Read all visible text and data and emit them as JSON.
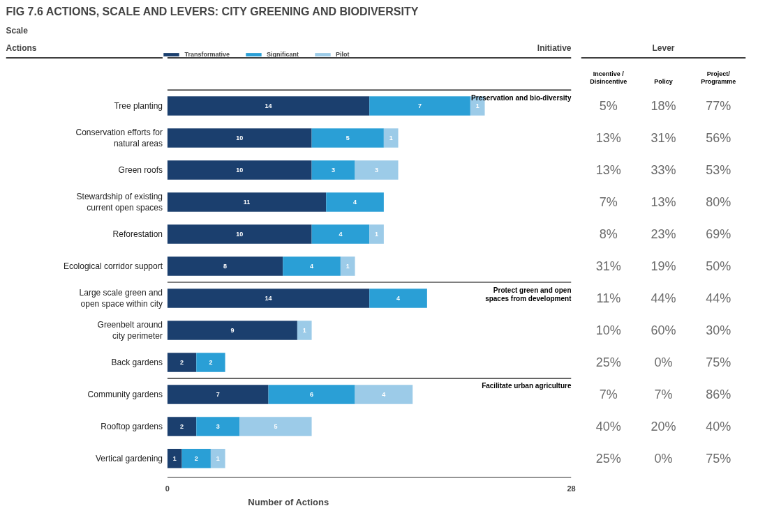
{
  "chart_data": [
    {
      "type": "bar",
      "orientation": "horizontal",
      "stacked": true,
      "title": "FIG 7.6 ACTIONS, SCALE AND LEVERS: CITY GREENING AND BIODIVERSITY",
      "subtitle": "Scale",
      "ylabel": "Actions",
      "xlabel": "Number of Actions",
      "categories": [
        "Tree planting",
        "Conservation efforts for natural areas",
        "Green roofs",
        "Stewardship of existing current open spaces",
        "Reforestation",
        "Ecological corridor support",
        "Large scale green and open space within city",
        "Greenbelt around city perimeter",
        "Back gardens",
        "Community gardens",
        "Rooftop gardens",
        "Vertical gardening"
      ],
      "series": [
        {
          "name": "Transformative",
          "color": "#1b3f6e",
          "values": [
            14,
            10,
            10,
            11,
            10,
            8,
            14,
            9,
            2,
            7,
            2,
            1
          ]
        },
        {
          "name": "Significant",
          "color": "#2a9fd6",
          "values": [
            7,
            5,
            3,
            4,
            4,
            4,
            4,
            null,
            2,
            6,
            3,
            2
          ]
        },
        {
          "name": "Pilot",
          "color": "#9ccbe8",
          "values": [
            1,
            1,
            3,
            null,
            1,
            1,
            null,
            1,
            null,
            4,
            5,
            1
          ]
        }
      ],
      "xlim": [
        0,
        28
      ],
      "xticks": [
        0,
        28
      ],
      "grid": false,
      "legend": "top left",
      "data_labels": true,
      "annotations": [
        "Initiative",
        "Preservation and bio-diversity",
        "Protect green and open spaces from development",
        "Facilitate urban agriculture"
      ]
    },
    {
      "type": "other",
      "title": "Lever",
      "categories": [
        "Incentive / Disincentive",
        "Policy",
        "Project/ Programme"
      ],
      "cell_labels": [
        [
          "5%",
          "18%",
          "77%"
        ],
        [
          "13%",
          "31%",
          "56%"
        ],
        [
          "13%",
          "33%",
          "53%"
        ],
        [
          "7%",
          "13%",
          "80%"
        ],
        [
          "8%",
          "23%",
          "69%"
        ],
        [
          "31%",
          "19%",
          "50%"
        ],
        [
          "11%",
          "44%",
          "44%"
        ],
        [
          "10%",
          "60%",
          "30%"
        ],
        [
          "25%",
          "0%",
          "75%"
        ],
        [
          "7%",
          "7%",
          "86%"
        ],
        [
          "40%",
          "20%",
          "40%"
        ],
        [
          "25%",
          "0%",
          "75%"
        ]
      ]
    }
  ]
}
